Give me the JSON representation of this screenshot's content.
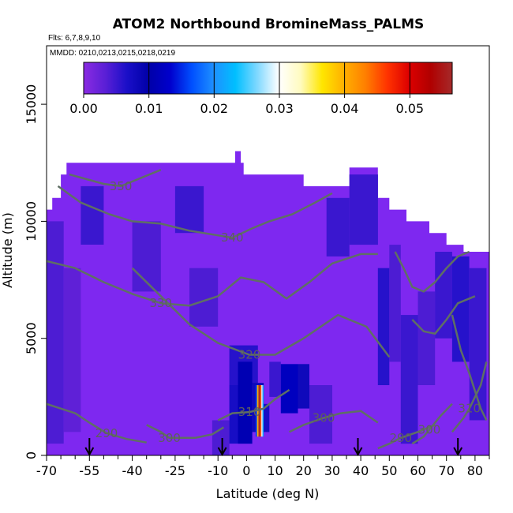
{
  "chart_data": {
    "type": "heatmap",
    "title": "ATOM2 Northbound BromineMass_PALMS",
    "subtitle_flights": "Flts: 6,7,8,9,10",
    "subtitle_dates": "MMDD: 0210,0213,0215,0218,0219",
    "xlabel": "Latitude (deg N)",
    "ylabel": "Altitude (m)",
    "xlim": [
      -70,
      85
    ],
    "ylim": [
      0,
      17500
    ],
    "x_major_ticks": [
      -70,
      -55,
      -40,
      -25,
      -10,
      0,
      10,
      20,
      30,
      40,
      50,
      60,
      70,
      80
    ],
    "x_major_tick_labels": [
      "-70",
      "-55",
      "-40",
      "-25",
      "-10",
      "0",
      "10",
      "20",
      "30",
      "40",
      "50",
      "60",
      "70",
      "80"
    ],
    "x_minor_ticks": [
      -65,
      -60,
      -50,
      -45,
      -35,
      -30,
      -20,
      -15,
      -5,
      5,
      15,
      25,
      35,
      45,
      55,
      65,
      75,
      85
    ],
    "y_ticks": [
      0,
      5000,
      10000,
      15000
    ],
    "y_tick_labels": [
      "0",
      "5000",
      "10000",
      "15000"
    ],
    "colorbar": {
      "range": [
        0,
        0.0565
      ],
      "ticks": [
        0.0,
        0.01,
        0.02,
        0.03,
        0.04,
        0.05
      ],
      "tick_labels": [
        "0.00",
        "0.01",
        "0.02",
        "0.03",
        "0.04",
        "0.05"
      ],
      "colors": [
        "#8a2be2",
        "#5a1fd6",
        "#1a0fc8",
        "#0000a8",
        "#0000cd",
        "#0050ff",
        "#1e90ff",
        "#00bfff",
        "#7fd8ff",
        "#ffffff",
        "#fffbc0",
        "#ffe600",
        "#ffb000",
        "#ff7f00",
        "#ff3300",
        "#dd0000",
        "#b00000",
        "#a52a2a"
      ]
    },
    "background_value": 0.002,
    "background_color": "#7e28f0",
    "data_envelope": [
      [
        -70,
        0
      ],
      [
        -70,
        10500
      ],
      [
        -68,
        10500
      ],
      [
        -68,
        11000
      ],
      [
        -65,
        11000
      ],
      [
        -65,
        12000
      ],
      [
        -63,
        12000
      ],
      [
        -63,
        12500
      ],
      [
        -4,
        12500
      ],
      [
        -4,
        13000
      ],
      [
        -2,
        13000
      ],
      [
        -2,
        12500
      ],
      [
        -1,
        12500
      ],
      [
        -1,
        12000
      ],
      [
        20,
        12000
      ],
      [
        20,
        11500
      ],
      [
        36,
        11500
      ],
      [
        36,
        12300
      ],
      [
        46,
        12300
      ],
      [
        46,
        11000
      ],
      [
        50,
        11000
      ],
      [
        50,
        10500
      ],
      [
        56,
        10500
      ],
      [
        56,
        10000
      ],
      [
        64,
        10000
      ],
      [
        64,
        9500
      ],
      [
        70,
        9500
      ],
      [
        70,
        9000
      ],
      [
        76,
        9000
      ],
      [
        76,
        8700
      ],
      [
        85,
        8700
      ],
      [
        85,
        0
      ]
    ],
    "cells": [
      {
        "x": [
          -70,
          -64
        ],
        "y": [
          500,
          10000
        ],
        "v": 0.004
      },
      {
        "x": [
          -64,
          -58
        ],
        "y": [
          1000,
          8000
        ],
        "v": 0.003
      },
      {
        "x": [
          -58,
          -50
        ],
        "y": [
          9000,
          11500
        ],
        "v": 0.005
      },
      {
        "x": [
          -40,
          -30
        ],
        "y": [
          7000,
          10000
        ],
        "v": 0.004
      },
      {
        "x": [
          -25,
          -15
        ],
        "y": [
          9500,
          11500
        ],
        "v": 0.005
      },
      {
        "x": [
          -20,
          -10
        ],
        "y": [
          5500,
          8000
        ],
        "v": 0.004
      },
      {
        "x": [
          -12,
          -6
        ],
        "y": [
          0,
          1500
        ],
        "v": 0.004
      },
      {
        "x": [
          -6,
          4
        ],
        "y": [
          3000,
          4700
        ],
        "v": 0.006
      },
      {
        "x": [
          -6,
          -3
        ],
        "y": [
          500,
          3000
        ],
        "v": 0.007
      },
      {
        "x": [
          -3,
          2
        ],
        "y": [
          500,
          4000
        ],
        "v": 0.011
      },
      {
        "x": [
          2,
          6
        ],
        "y": [
          1000,
          3100
        ],
        "v": 0.008
      },
      {
        "x": [
          6,
          8
        ],
        "y": [
          1000,
          2200
        ],
        "v": 0.007
      },
      {
        "x": [
          8,
          12
        ],
        "y": [
          2500,
          4000
        ],
        "v": 0.005
      },
      {
        "x": [
          12,
          18
        ],
        "y": [
          1800,
          3900
        ],
        "v": 0.012
      },
      {
        "x": [
          18,
          22
        ],
        "y": [
          2000,
          3900
        ],
        "v": 0.008
      },
      {
        "x": [
          22,
          30
        ],
        "y": [
          500,
          3000
        ],
        "v": 0.004
      },
      {
        "x": [
          28,
          36
        ],
        "y": [
          8500,
          11000
        ],
        "v": 0.005
      },
      {
        "x": [
          36,
          46
        ],
        "y": [
          9000,
          12000
        ],
        "v": 0.005
      },
      {
        "x": [
          46,
          50
        ],
        "y": [
          3000,
          8000
        ],
        "v": 0.006
      },
      {
        "x": [
          50,
          54
        ],
        "y": [
          4000,
          9000
        ],
        "v": 0.004
      },
      {
        "x": [
          54,
          60
        ],
        "y": [
          500,
          6000
        ],
        "v": 0.005
      },
      {
        "x": [
          60,
          66
        ],
        "y": [
          3000,
          7000
        ],
        "v": 0.004
      },
      {
        "x": [
          66,
          72
        ],
        "y": [
          5000,
          8700
        ],
        "v": 0.005
      },
      {
        "x": [
          72,
          78
        ],
        "y": [
          4000,
          8500
        ],
        "v": 0.006
      },
      {
        "x": [
          78,
          84
        ],
        "y": [
          1500,
          8000
        ],
        "v": 0.005
      },
      {
        "x": [
          3.2,
          3.7
        ],
        "y": [
          800,
          3000
        ],
        "v": 0.016
      },
      {
        "x": [
          3.7,
          4.2
        ],
        "y": [
          800,
          3000
        ],
        "v": 0.04
      },
      {
        "x": [
          4.2,
          4.7
        ],
        "y": [
          800,
          3000
        ],
        "v": 0.056
      },
      {
        "x": [
          4.7,
          5.2
        ],
        "y": [
          800,
          3000
        ],
        "v": 0.045
      },
      {
        "x": [
          5.2,
          5.6
        ],
        "y": [
          800,
          3000
        ],
        "v": 0.03
      },
      {
        "x": [
          5.6,
          6.0
        ],
        "y": [
          800,
          3000
        ],
        "v": 0.022
      }
    ],
    "contours": [
      {
        "label": "290",
        "label_at": [
          -49,
          950
        ],
        "points": [
          [
            -70,
            2200
          ],
          [
            -60,
            1800
          ],
          [
            -55,
            1400
          ],
          [
            -49,
            950
          ],
          [
            -42,
            700
          ],
          [
            -35,
            550
          ]
        ]
      },
      {
        "label": "300",
        "label_at": [
          -27,
          750
        ],
        "points": [
          [
            -35,
            1300
          ],
          [
            -30,
            1000
          ],
          [
            -27,
            750
          ],
          [
            -18,
            750
          ],
          [
            -12,
            900
          ],
          [
            -8,
            1200
          ]
        ]
      },
      {
        "label": "310",
        "label_at": [
          1,
          1850
        ],
        "points": [
          [
            -10,
            1500
          ],
          [
            -5,
            1800
          ],
          [
            1,
            1850
          ],
          [
            6,
            2000
          ],
          [
            10,
            2400
          ],
          [
            15,
            2800
          ]
        ]
      },
      {
        "label": "300",
        "label_at": [
          27,
          1600
        ],
        "points": [
          [
            15,
            1000
          ],
          [
            20,
            1300
          ],
          [
            27,
            1600
          ],
          [
            33,
            1800
          ],
          [
            40,
            1900
          ],
          [
            46,
            1400
          ]
        ]
      },
      {
        "label": "290",
        "label_at": [
          54,
          750
        ],
        "points": [
          [
            46,
            300
          ],
          [
            50,
            500
          ],
          [
            54,
            750
          ],
          [
            60,
            1000
          ],
          [
            66,
            1300
          ]
        ]
      },
      {
        "label": "300",
        "label_at": [
          64,
          1100
        ],
        "points": [
          [
            58,
            500
          ],
          [
            62,
            800
          ],
          [
            64,
            1100
          ],
          [
            68,
            1700
          ],
          [
            72,
            2200
          ]
        ]
      },
      {
        "label": "310",
        "label_at": [
          78,
          2000
        ],
        "points": [
          [
            72,
            1000
          ],
          [
            76,
            1600
          ],
          [
            78,
            2000
          ],
          [
            82,
            3000
          ],
          [
            84,
            4000
          ]
        ]
      },
      {
        "label": "320",
        "label_at": [
          1,
          4300
        ],
        "points": [
          [
            -40,
            8000
          ],
          [
            -30,
            6800
          ],
          [
            -20,
            5600
          ],
          [
            -10,
            4800
          ],
          [
            1,
            4300
          ],
          [
            10,
            4300
          ],
          [
            20,
            5000
          ],
          [
            32,
            6000
          ],
          [
            42,
            5500
          ],
          [
            50,
            4200
          ]
        ]
      },
      {
        "label": "330",
        "label_at": [
          -30,
          6500
        ],
        "points": [
          [
            -70,
            8300
          ],
          [
            -60,
            8000
          ],
          [
            -50,
            7400
          ],
          [
            -40,
            6900
          ],
          [
            -30,
            6500
          ],
          [
            -20,
            6400
          ],
          [
            -10,
            6800
          ],
          [
            -2,
            7600
          ],
          [
            6,
            7400
          ],
          [
            14,
            6700
          ],
          [
            22,
            7400
          ],
          [
            30,
            8200
          ],
          [
            40,
            8600
          ],
          [
            46,
            8600
          ]
        ]
      },
      {
        "label": "340",
        "label_at": [
          -5,
          9300
        ],
        "points": [
          [
            -66,
            11500
          ],
          [
            -58,
            10800
          ],
          [
            -48,
            10300
          ],
          [
            -40,
            10000
          ],
          [
            -30,
            9900
          ],
          [
            -20,
            9600
          ],
          [
            -10,
            9400
          ],
          [
            -5,
            9300
          ],
          [
            2,
            9700
          ],
          [
            8,
            10000
          ],
          [
            16,
            10300
          ],
          [
            24,
            10800
          ],
          [
            30,
            11200
          ]
        ]
      },
      {
        "label": "350",
        "label_at": [
          -44,
          11500
        ],
        "points": [
          [
            -62,
            12000
          ],
          [
            -56,
            11800
          ],
          [
            -50,
            11600
          ],
          [
            -44,
            11500
          ],
          [
            -38,
            11800
          ],
          [
            -30,
            12200
          ]
        ]
      },
      {
        "label": "",
        "label_at": null,
        "points": [
          [
            52,
            8700
          ],
          [
            55,
            8000
          ],
          [
            58,
            7200
          ],
          [
            62,
            7000
          ],
          [
            66,
            7400
          ],
          [
            70,
            8000
          ],
          [
            74,
            8500
          ],
          [
            78,
            8700
          ]
        ]
      },
      {
        "label": "",
        "label_at": null,
        "points": [
          [
            58,
            5800
          ],
          [
            62,
            5300
          ],
          [
            66,
            5200
          ],
          [
            70,
            5800
          ],
          [
            74,
            6500
          ],
          [
            80,
            6800
          ]
        ]
      },
      {
        "label": "",
        "label_at": null,
        "points": [
          [
            72,
            6000
          ],
          [
            75,
            4500
          ],
          [
            78,
            3500
          ],
          [
            82,
            2000
          ],
          [
            84,
            1500
          ]
        ]
      }
    ],
    "flight_arrows_x": [
      -55,
      -8.5,
      39,
      74
    ],
    "grid": false,
    "legend": "colorbar-top-inside"
  }
}
